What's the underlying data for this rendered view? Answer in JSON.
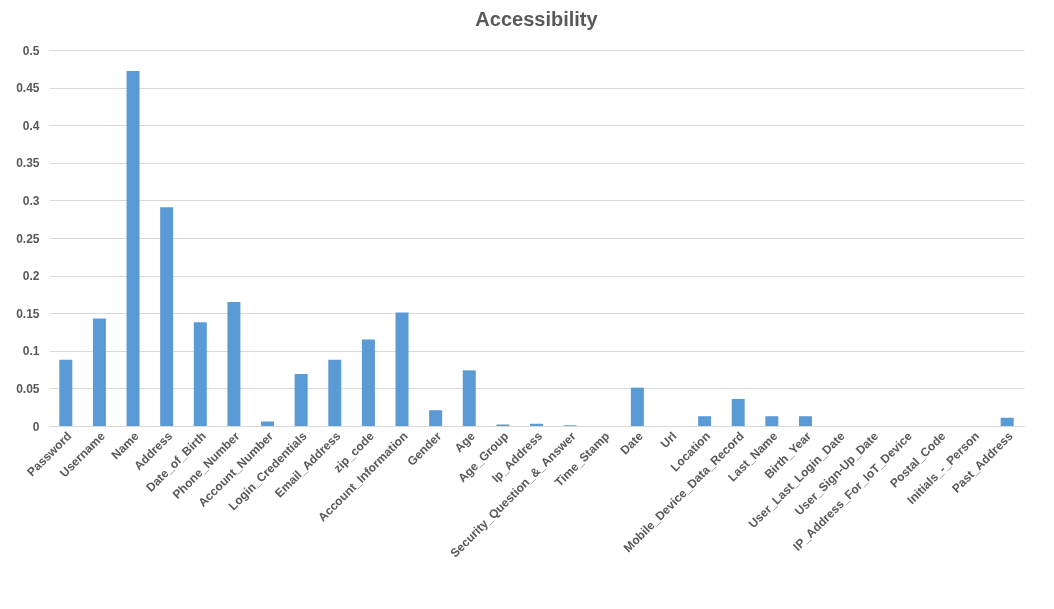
{
  "chart_data": {
    "type": "bar",
    "title": "Accessibility",
    "categories": [
      "Password",
      "Username",
      "Name",
      "Address",
      "Date_of_Birth",
      "Phone_Number",
      "Account_Number",
      "Login_Credentials",
      "Email_Address",
      "zip_code",
      "Account_Information",
      "Gender",
      "Age",
      "Age_Group",
      "Ip_Address",
      "Security_Question_&_Answer",
      "Time_Stamp",
      "Date",
      "Url",
      "Location",
      "Mobile_Device_Data_Record",
      "Last_Name",
      "Birth_Year",
      "User_Last_Login_Date",
      "User_Sign-Up_Date",
      "IP_Address_For_IoT_Device",
      "Postal_Code",
      "Initials_-_Person",
      "Past_Address"
    ],
    "values": [
      0.088,
      0.143,
      0.472,
      0.291,
      0.138,
      0.165,
      0.006,
      0.069,
      0.088,
      0.115,
      0.151,
      0.021,
      0.074,
      0.002,
      0.003,
      0.001,
      0,
      0.051,
      0,
      0.013,
      0.036,
      0.013,
      0.013,
      0,
      0,
      0,
      0,
      0,
      0.011
    ],
    "color": "#5b9bd5",
    "ylim": [
      0,
      0.5
    ],
    "yticks": [
      0,
      0.05,
      0.1,
      0.15,
      0.2,
      0.25,
      0.3,
      0.35,
      0.4,
      0.45,
      0.5
    ],
    "grid": "y"
  }
}
